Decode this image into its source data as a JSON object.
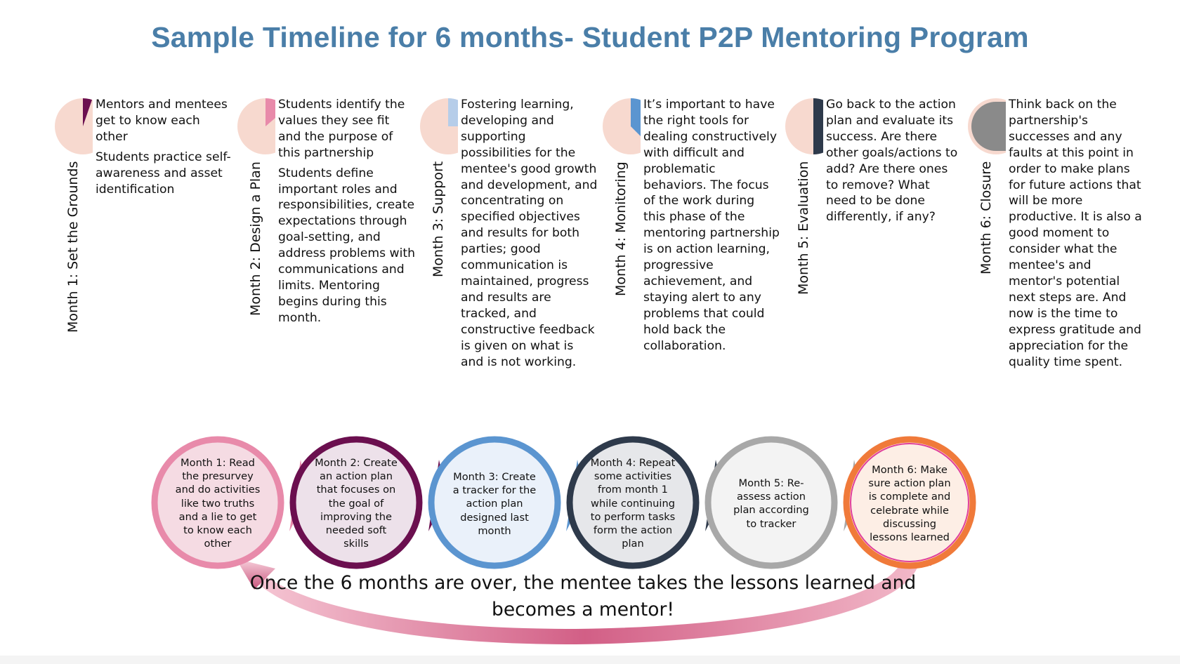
{
  "title": "Sample Timeline for 6 months- Student P2P Mentoring Program",
  "months": [
    {
      "label": "Month 1: Set the Grounds",
      "paragraphs": [
        "Mentors and mentees get to know each other",
        "Students practice self-awareness and asset identification"
      ],
      "color": "#6b0f4f"
    },
    {
      "label": "Month 2: Design a Plan",
      "paragraphs": [
        "Students identify the values they see fit and the purpose of this partnership",
        "Students define important roles and responsibilities, create expectations through goal-setting, and address problems with communications and limits. Mentoring begins during this month."
      ],
      "color": "#e88aaa"
    },
    {
      "label": "Month 3: Support",
      "paragraphs": [
        "Fostering learning, developing and supporting possibilities for the mentee's good growth and development, and concentrating on specified objectives and results for both parties;  good communication is maintained, progress and results are tracked, and constructive feedback is given on what is and is not working."
      ],
      "color": "#b6cde9"
    },
    {
      "label": "Month 4: Monitoring",
      "paragraphs": [
        "It’s important to have the right tools for dealing constructively with difficult and problematic behaviors. The focus of the work during this phase of the mentoring partnership is on action learning, progressive achievement, and staying alert to any problems that could hold back the collaboration."
      ],
      "color": "#5b95d0"
    },
    {
      "label": "Month 5: Evaluation",
      "paragraphs": [
        "Go back to the action plan and evaluate its success. Are there other goals/actions to add? Are there ones to remove? What need to be done differently, if any?"
      ],
      "color": "#2e3a4b"
    },
    {
      "label": "Month 6: Closure",
      "paragraphs": [
        "Think back on the partnership's successes and any faults at this point in order to make plans for future actions that will be more productive. It is also a good moment to consider what the mentee's and mentor's potential next steps are. And now is the time to express gratitude and appreciation for the quality time spent."
      ],
      "color": "#8a8a8a"
    }
  ],
  "flow": [
    {
      "text": "Month 1: Read the presurvey and do activities like two truths and a lie to get to know each other",
      "ring": "#e88aaa",
      "fill": "#f5dbe3"
    },
    {
      "text": "Month 2: Create an action plan that focuses on the goal of improving the needed  soft skills",
      "ring": "#6b0f4f",
      "fill": "#ede1ea"
    },
    {
      "text": "Month 3: Create a tracker for the action plan designed last month",
      "ring": "#5b95d0",
      "fill": "#eaf1fa"
    },
    {
      "text": "Month 4: Repeat some activities from month 1 while continuing to perform tasks form the action plan",
      "ring": "#2e3a4b",
      "fill": "#e6e7ea"
    },
    {
      "text": "Month 5: Re-assess action plan according to tracker",
      "ring": "#a8a8a8",
      "fill": "#f3f3f3"
    },
    {
      "text": "Month 6: Make sure action plan is complete and celebrate while discussing lessons learned",
      "ring": "#f07a3a",
      "fill": "#fdeee5"
    }
  ],
  "closing": "Once the 6 months are over, the mentee takes the lessons learned and becomes a mentor!"
}
